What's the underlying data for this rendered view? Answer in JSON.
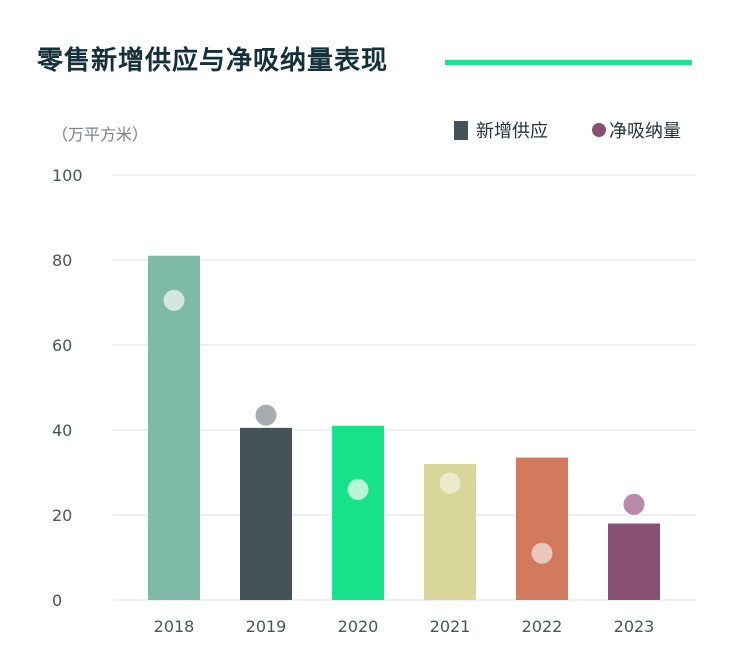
{
  "title": "零售新增供应与净吸纳量表现",
  "unit_label": "（万平方米）",
  "legend": {
    "supply_label": "新增供应",
    "absorption_label": "净吸纳量"
  },
  "colors": {
    "accent_rule": "#1de38f",
    "grid": "#dcdfe0",
    "axis_text": "#4a5559",
    "supply_legend": "#455358",
    "absorption_legend": "#8a4f74"
  },
  "chart_data": {
    "type": "bar",
    "categories": [
      "2018",
      "2019",
      "2020",
      "2021",
      "2022",
      "2023"
    ],
    "series": [
      {
        "name": "新增供应",
        "type": "bar",
        "values": [
          81,
          40.5,
          41,
          32,
          33.5,
          18
        ],
        "colors": [
          "#7fbaa8",
          "#455358",
          "#16e389",
          "#d9d69a",
          "#d37a5e",
          "#8a4f74"
        ]
      },
      {
        "name": "净吸纳量",
        "type": "scatter",
        "values": [
          70.5,
          43.5,
          26,
          27.5,
          11,
          22.5
        ],
        "colors": [
          "#d4e6e0",
          "#a8acae",
          "#b9f5d7",
          "#eceacb",
          "#eac7bb",
          "#b98aa9"
        ]
      }
    ],
    "ylim": [
      0,
      100
    ],
    "yticks": [
      0,
      20,
      40,
      60,
      80,
      100
    ],
    "grid": true,
    "legend_position": "top-right"
  }
}
